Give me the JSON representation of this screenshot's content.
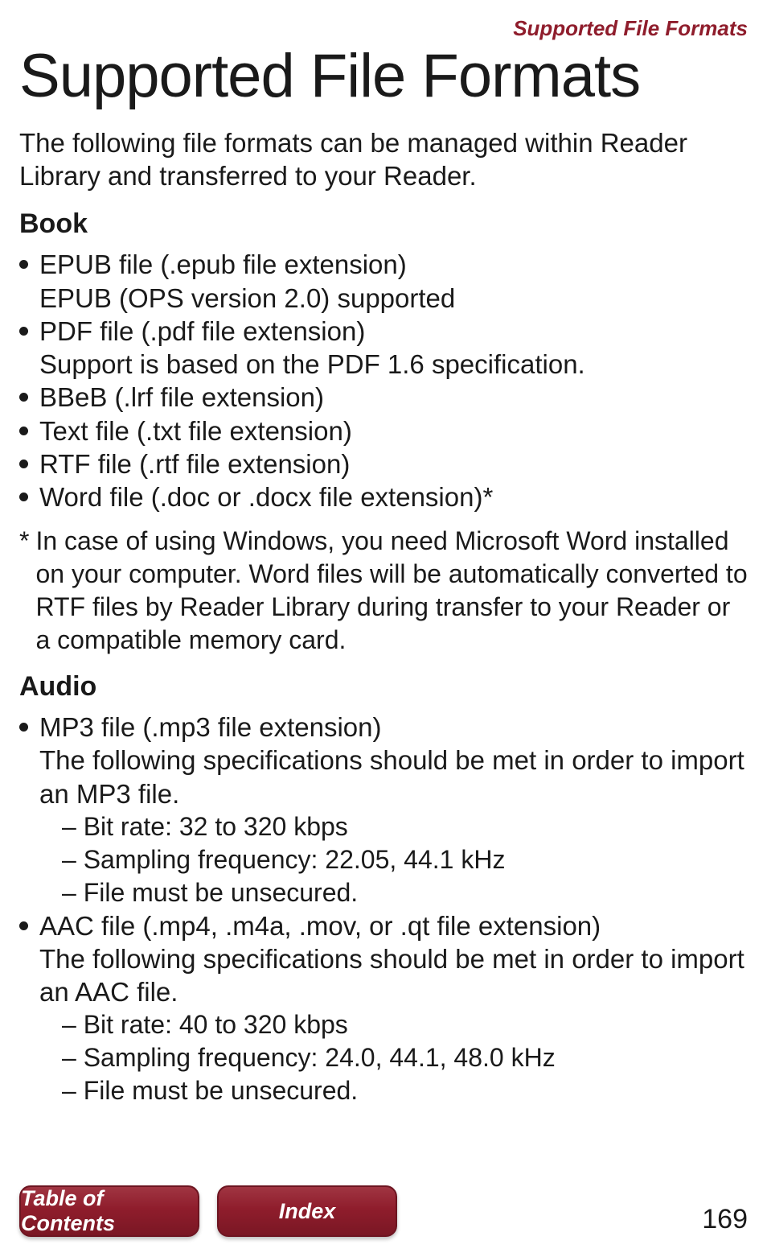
{
  "running_head": "Supported File Formats",
  "title": "Supported File Formats",
  "intro": "The following file formats can be managed within Reader Library and transferred to your Reader.",
  "sections": {
    "book": {
      "heading": "Book",
      "items": [
        {
          "main": "EPUB file (.epub file extension)",
          "sub": "EPUB (OPS version 2.0) supported"
        },
        {
          "main": "PDF file (.pdf file extension)",
          "sub": "Support is based on the PDF 1.6 specification."
        },
        {
          "main": "BBeB (.lrf file extension)"
        },
        {
          "main": "Text file (.txt file extension)"
        },
        {
          "main": "RTF file (.rtf file extension)"
        },
        {
          "main": "Word file (.doc or .docx file extension)*"
        }
      ],
      "footnote_mark": "*",
      "footnote": "In case of using Windows, you need Microsoft Word installed on your computer. Word files will be automatically converted to RTF files by Reader Library during transfer to your Reader or a compatible memory card."
    },
    "audio": {
      "heading": "Audio",
      "items": [
        {
          "main": "MP3 file (.mp3 file extension)",
          "desc": "The following specifications should be met in order to import an MP3 file.",
          "specs": [
            "– Bit rate: 32 to 320 kbps",
            "– Sampling frequency: 22.05, 44.1 kHz",
            "– File must be unsecured."
          ]
        },
        {
          "main": "AAC file (.mp4, .m4a, .mov, or .qt file extension)",
          "desc": "The following specifications should be met in order to import an AAC file.",
          "specs": [
            "– Bit rate: 40 to 320 kbps",
            "– Sampling frequency: 24.0, 44.1, 48.0 kHz",
            "– File must be unsecured."
          ]
        }
      ]
    }
  },
  "nav": {
    "toc": "Table of Contents",
    "index": "Index"
  },
  "page_number": "169",
  "colors": {
    "accent": "#8f1d2c",
    "text": "#1a1a1a",
    "background": "#ffffff"
  }
}
